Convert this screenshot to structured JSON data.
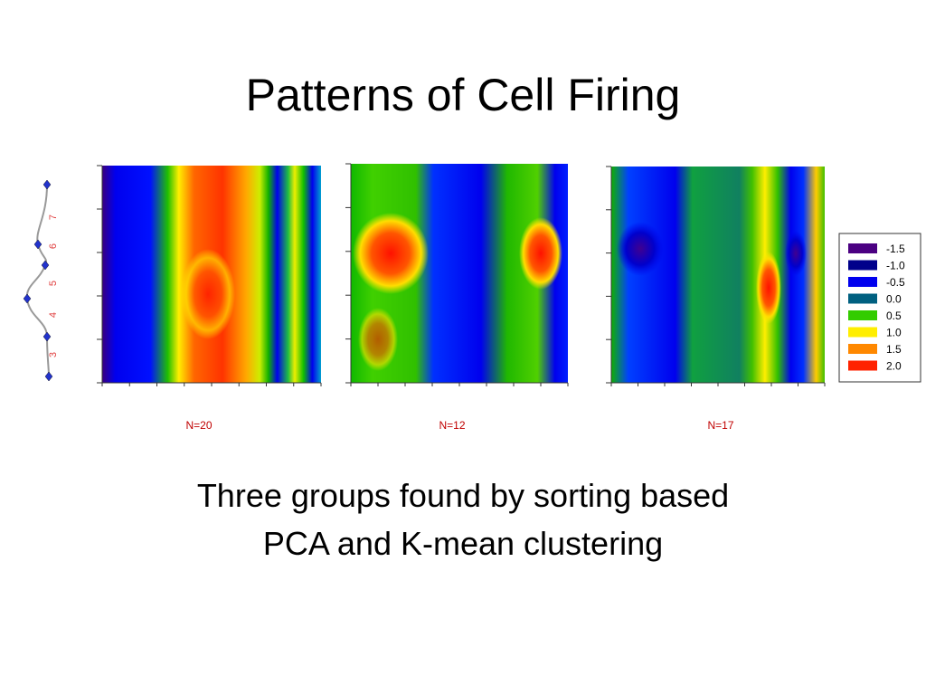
{
  "slide": {
    "title": "Patterns of Cell Firing",
    "panels": [
      {
        "label": "N=20"
      },
      {
        "label": "N=12"
      },
      {
        "label": "N=17"
      }
    ],
    "legend": [
      {
        "label": "-1.5",
        "color": "#4b0082"
      },
      {
        "label": "-1.0",
        "color": "#00008b"
      },
      {
        "label": "-0.5",
        "color": "#0000ee"
      },
      {
        "label": "0.0",
        "color": "#006080"
      },
      {
        "label": "0.5",
        "color": "#33cc00"
      },
      {
        "label": "1.0",
        "color": "#ffee00"
      },
      {
        "label": "1.5",
        "color": "#ff8800"
      },
      {
        "label": "2.0",
        "color": "#ff2200"
      }
    ],
    "side_labels": [
      "3",
      "4",
      "5",
      "6",
      "7"
    ],
    "caption": [
      "Three groups found by sorting based",
      "PCA and K-mean clustering"
    ]
  }
}
